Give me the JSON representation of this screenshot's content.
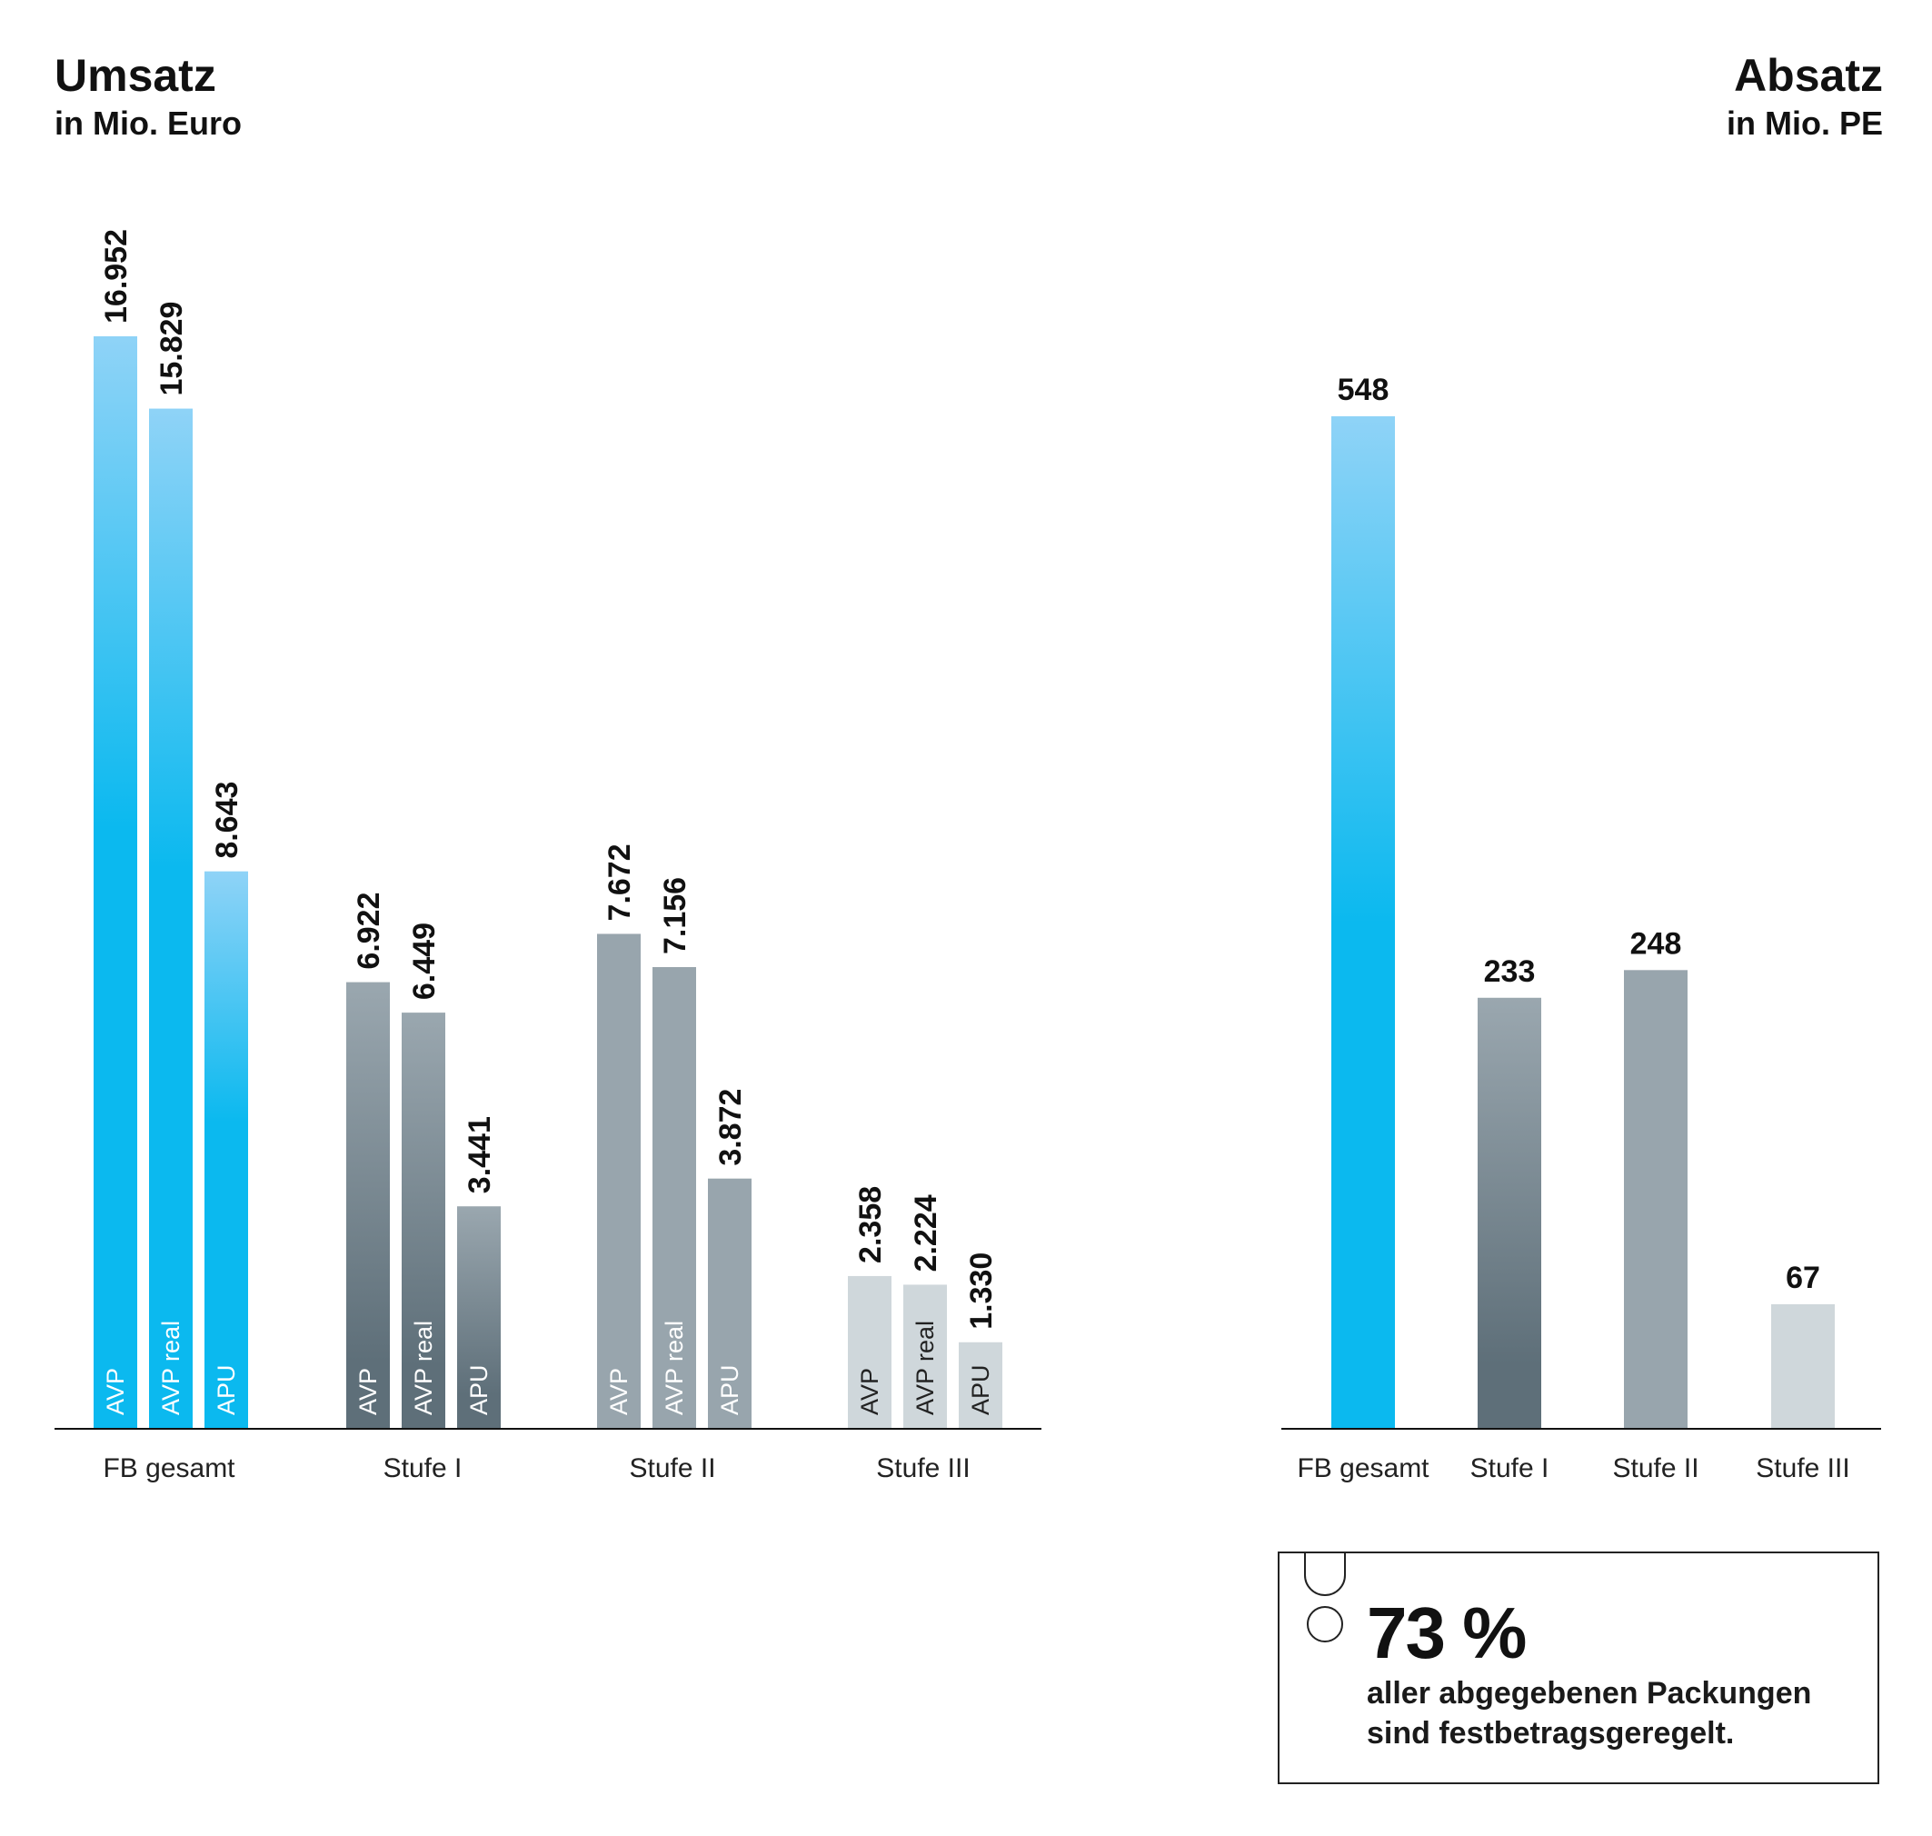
{
  "left": {
    "title": "Umsatz",
    "subtitle": "in Mio. Euro"
  },
  "right": {
    "title": "Absatz",
    "subtitle": "in Mio. PE"
  },
  "colors": {
    "fb": "#0bb9ef",
    "fb_light": "#8fd3f7",
    "stufe1": "#5e6f79",
    "stufe1_light": "#9aa7af",
    "stufe2": "#98a5ad",
    "stufe3": "#cfd7db"
  },
  "chart_data": [
    {
      "type": "bar",
      "title": "Umsatz",
      "subtitle": "in Mio. Euro",
      "categories": [
        "FB gesamt",
        "Stufe I",
        "Stufe II",
        "Stufe III"
      ],
      "series": [
        {
          "name": "AVP",
          "values": [
            16952,
            6922,
            7672,
            2358
          ],
          "labels": [
            "16.952",
            "6.922",
            "7.672",
            "2.358"
          ]
        },
        {
          "name": "AVP real",
          "values": [
            15829,
            6449,
            7156,
            2224
          ],
          "labels": [
            "15.829",
            "6.449",
            "7.156",
            "2.224"
          ]
        },
        {
          "name": "APU",
          "values": [
            8643,
            3441,
            3872,
            1330
          ],
          "labels": [
            "8.643",
            "3.441",
            "3.872",
            "1.330"
          ]
        }
      ],
      "ylim": [
        0,
        17000
      ],
      "grid": false
    },
    {
      "type": "bar",
      "title": "Absatz",
      "subtitle": "in Mio. PE",
      "categories": [
        "FB gesamt",
        "Stufe I",
        "Stufe II",
        "Stufe III"
      ],
      "values": [
        548,
        233,
        248,
        67
      ],
      "labels": [
        "548",
        "233",
        "248",
        "67"
      ],
      "ylim": [
        0,
        548
      ],
      "grid": false
    }
  ],
  "note": {
    "value": "73 %",
    "line1": "aller abgegebenen Packungen",
    "line2": "sind festbetragsgeregelt."
  }
}
